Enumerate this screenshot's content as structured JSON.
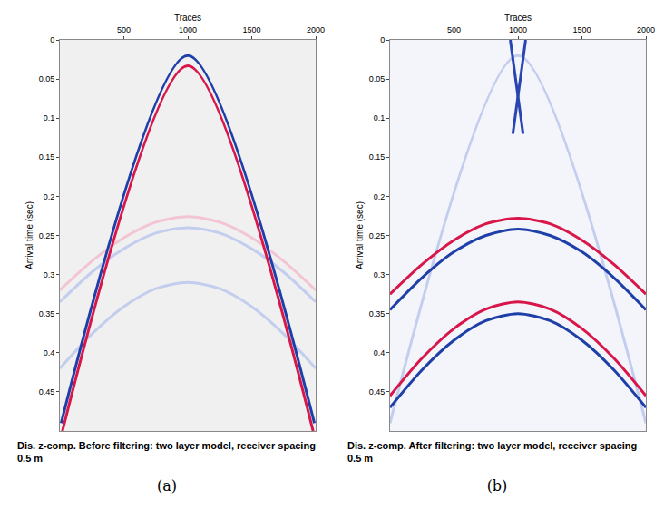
{
  "chart_data": [
    {
      "type": "line",
      "x_label": "Traces",
      "y_label": "Arrival time (sec)",
      "caption": "Dis. z-comp. Before filtering: two layer model, receiver spacing 0.5 m",
      "panel_label": "(a)",
      "xlim": [
        0,
        2000
      ],
      "xticks": [
        500,
        1000,
        1500,
        2000
      ],
      "ylim": [
        0.5,
        0
      ],
      "yticks": [
        0,
        0.05,
        0.1,
        0.15,
        0.2,
        0.25,
        0.3,
        0.35,
        0.4,
        0.45
      ],
      "grid": false,
      "series": [
        {
          "color": "#f3c4d2",
          "x": [
            0,
            250,
            500,
            750,
            1000,
            1250,
            1500,
            1750,
            2000
          ],
          "values": [
            0.32,
            0.283,
            0.253,
            0.233,
            0.226,
            0.233,
            0.253,
            0.283,
            0.32
          ]
        },
        {
          "color": "#c3cdee",
          "x": [
            0,
            250,
            500,
            750,
            1000,
            1250,
            1500,
            1750,
            2000
          ],
          "values": [
            0.335,
            0.297,
            0.267,
            0.247,
            0.24,
            0.247,
            0.267,
            0.297,
            0.335
          ]
        },
        {
          "color": "#c3cdee",
          "x": [
            0,
            250,
            500,
            750,
            1000,
            1250,
            1500,
            1750,
            2000
          ],
          "values": [
            0.42,
            0.376,
            0.341,
            0.318,
            0.31,
            0.318,
            0.341,
            0.376,
            0.42
          ]
        },
        {
          "color": "#1f3fa8",
          "x": [
            10,
            1000,
            1990
          ],
          "values": [
            0.49,
            0.02,
            0.49
          ]
        },
        {
          "color": "#d9164a",
          "x": [
            20,
            1000,
            1980
          ],
          "values": [
            0.5,
            0.033,
            0.5
          ]
        }
      ]
    },
    {
      "type": "line",
      "x_label": "Traces",
      "y_label": "Arrival time (sec)",
      "caption": "Dis. z-comp. After filtering: two layer model, receiver spacing 0.5 m",
      "panel_label": "(b)",
      "xlim": [
        0,
        2000
      ],
      "xticks": [
        500,
        1000,
        1500,
        2000
      ],
      "ylim": [
        0.5,
        0
      ],
      "yticks": [
        0,
        0.05,
        0.1,
        0.15,
        0.2,
        0.25,
        0.3,
        0.35,
        0.4,
        0.45
      ],
      "grid": false,
      "series": [
        {
          "color": "#c3cdee",
          "x": [
            0,
            1000,
            2000
          ],
          "values": [
            0.49,
            0.02,
            0.49
          ]
        },
        {
          "color": "#2a45b0",
          "x": [
            940,
            1040
          ],
          "values": [
            0,
            0.12
          ]
        },
        {
          "color": "#2a45b0",
          "x": [
            1060,
            960
          ],
          "values": [
            0,
            0.12
          ]
        },
        {
          "color": "#d9164a",
          "x": [
            0,
            250,
            500,
            750,
            1000,
            1250,
            1500,
            1750,
            2000
          ],
          "values": [
            0.325,
            0.287,
            0.256,
            0.235,
            0.228,
            0.235,
            0.256,
            0.287,
            0.325
          ]
        },
        {
          "color": "#1f3fa8",
          "x": [
            0,
            250,
            500,
            750,
            1000,
            1250,
            1500,
            1750,
            2000
          ],
          "values": [
            0.345,
            0.304,
            0.271,
            0.25,
            0.242,
            0.25,
            0.271,
            0.304,
            0.345
          ]
        },
        {
          "color": "#d9164a",
          "x": [
            0,
            250,
            500,
            750,
            1000,
            1250,
            1500,
            1750,
            2000
          ],
          "values": [
            0.455,
            0.407,
            0.369,
            0.344,
            0.335,
            0.344,
            0.369,
            0.407,
            0.455
          ]
        },
        {
          "color": "#1f3fa8",
          "x": [
            0,
            250,
            500,
            750,
            1000,
            1250,
            1500,
            1750,
            2000
          ],
          "values": [
            0.47,
            0.422,
            0.384,
            0.359,
            0.35,
            0.359,
            0.384,
            0.422,
            0.47
          ]
        }
      ]
    }
  ]
}
